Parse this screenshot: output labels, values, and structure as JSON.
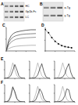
{
  "gels": [
    {
      "title": "A",
      "labels": [
        "HC",
        "Gp1b-Fc",
        "LC"
      ]
    },
    {
      "title": "B",
      "labels": [
        "α-Tg",
        "γ-Tg"
      ]
    }
  ],
  "chart_data": [
    {
      "type": "line",
      "title": "C",
      "x": [
        0,
        5,
        10,
        15,
        20,
        30,
        40,
        50,
        60
      ],
      "xlim": [
        0,
        60
      ],
      "ylim": [
        0,
        1
      ],
      "xticks": [
        0,
        20,
        40,
        60
      ],
      "yticks": [
        0,
        0.5,
        1
      ],
      "tick_labels": false,
      "series": [
        {
          "color": "#000000",
          "values": [
            0,
            0.45,
            0.65,
            0.75,
            0.8,
            0.85,
            0.88,
            0.9,
            0.9
          ]
        },
        {
          "color": "#333333",
          "values": [
            0,
            0.35,
            0.52,
            0.6,
            0.65,
            0.7,
            0.72,
            0.73,
            0.74
          ]
        },
        {
          "color": "#555555",
          "values": [
            0,
            0.25,
            0.38,
            0.45,
            0.5,
            0.54,
            0.56,
            0.57,
            0.58
          ]
        },
        {
          "color": "#888888",
          "values": [
            0,
            0.1,
            0.15,
            0.18,
            0.2,
            0.22,
            0.23,
            0.24,
            0.24
          ]
        }
      ]
    },
    {
      "type": "scatter",
      "title": "D",
      "x": [
        0,
        1,
        2,
        3,
        4,
        5,
        6,
        7,
        8
      ],
      "xlim": [
        0,
        9
      ],
      "ylim": [
        0,
        110
      ],
      "xticks": [
        0,
        3,
        6,
        9
      ],
      "yticks": [
        0,
        50,
        100
      ],
      "tick_labels": false,
      "marker": "circle",
      "line_style": "solid",
      "series": [
        {
          "color": "#000000",
          "values": [
            100,
            85,
            62,
            45,
            33,
            25,
            20,
            17,
            15
          ]
        }
      ]
    },
    {
      "type": "line",
      "title": "E",
      "x": [
        0,
        1,
        2,
        3,
        4,
        5,
        6,
        7,
        8,
        9,
        10
      ],
      "xlim": [
        0,
        10
      ],
      "ylim": [
        0,
        100
      ],
      "xticks": [
        0,
        5,
        10
      ],
      "yticks": [
        0,
        50,
        100
      ],
      "tick_labels": false,
      "series": [
        {
          "color": "#999999",
          "values": [
            0,
            2,
            10,
            45,
            90,
            50,
            15,
            4,
            1,
            0,
            0
          ]
        },
        {
          "color": "#000000",
          "values": [
            0,
            1,
            4,
            15,
            45,
            80,
            50,
            15,
            3,
            1,
            0
          ]
        }
      ]
    },
    {
      "type": "line",
      "x": [
        0,
        1,
        2,
        3,
        4,
        5,
        6,
        7,
        8,
        9,
        10
      ],
      "xlim": [
        0,
        10
      ],
      "ylim": [
        0,
        100
      ],
      "xticks": [
        0,
        5,
        10
      ],
      "yticks": [
        0,
        50,
        100
      ],
      "tick_labels": false,
      "series": [
        {
          "color": "#999999",
          "values": [
            0,
            2,
            10,
            45,
            90,
            50,
            15,
            4,
            1,
            0,
            0
          ]
        },
        {
          "color": "#000000",
          "values": [
            0,
            0,
            2,
            6,
            20,
            55,
            85,
            40,
            10,
            2,
            0
          ]
        }
      ]
    },
    {
      "type": "line",
      "x": [
        0,
        1,
        2,
        3,
        4,
        5,
        6,
        7,
        8,
        9,
        10
      ],
      "xlim": [
        0,
        10
      ],
      "ylim": [
        0,
        100
      ],
      "xticks": [
        0,
        5,
        10
      ],
      "yticks": [
        0,
        50,
        100
      ],
      "tick_labels": false,
      "series": [
        {
          "color": "#999999",
          "values": [
            0,
            2,
            10,
            45,
            90,
            50,
            15,
            4,
            1,
            0,
            0
          ]
        },
        {
          "color": "#000000",
          "values": [
            0,
            0,
            1,
            3,
            8,
            25,
            60,
            85,
            35,
            6,
            1
          ]
        }
      ]
    },
    {
      "type": "line",
      "title": "F",
      "x": [
        0,
        1,
        2,
        3,
        4,
        5,
        6,
        7,
        8,
        9,
        10
      ],
      "xlim": [
        0,
        10
      ],
      "ylim": [
        0,
        100
      ],
      "xticks": [
        0,
        5,
        10
      ],
      "yticks": [
        0,
        50,
        100
      ],
      "tick_labels": false,
      "series": [
        {
          "color": "#999999",
          "values": [
            0,
            2,
            10,
            45,
            90,
            50,
            15,
            4,
            1,
            0,
            0
          ]
        },
        {
          "color": "#000000",
          "values": [
            0,
            1,
            6,
            30,
            85,
            60,
            20,
            5,
            1,
            0,
            0
          ]
        }
      ]
    },
    {
      "type": "line",
      "x": [
        0,
        1,
        2,
        3,
        4,
        5,
        6,
        7,
        8,
        9,
        10
      ],
      "xlim": [
        0,
        10
      ],
      "ylim": [
        0,
        100
      ],
      "xticks": [
        0,
        5,
        10
      ],
      "yticks": [
        0,
        50,
        100
      ],
      "tick_labels": false,
      "series": [
        {
          "color": "#999999",
          "values": [
            0,
            2,
            10,
            45,
            90,
            50,
            15,
            4,
            1,
            0,
            0
          ]
        },
        {
          "color": "#000000",
          "values": [
            0,
            0,
            3,
            12,
            40,
            75,
            55,
            18,
            4,
            1,
            0
          ]
        }
      ]
    },
    {
      "type": "line",
      "x": [
        0,
        1,
        2,
        3,
        4,
        5,
        6,
        7,
        8,
        9,
        10
      ],
      "xlim": [
        0,
        10
      ],
      "ylim": [
        0,
        100
      ],
      "xticks": [
        0,
        5,
        10
      ],
      "yticks": [
        0,
        50,
        100
      ],
      "tick_labels": false,
      "series": [
        {
          "color": "#999999",
          "values": [
            0,
            2,
            10,
            45,
            90,
            50,
            15,
            4,
            1,
            0,
            0
          ]
        },
        {
          "color": "#000000",
          "values": [
            0,
            0,
            1,
            4,
            12,
            35,
            75,
            70,
            20,
            3,
            0
          ]
        }
      ]
    }
  ]
}
